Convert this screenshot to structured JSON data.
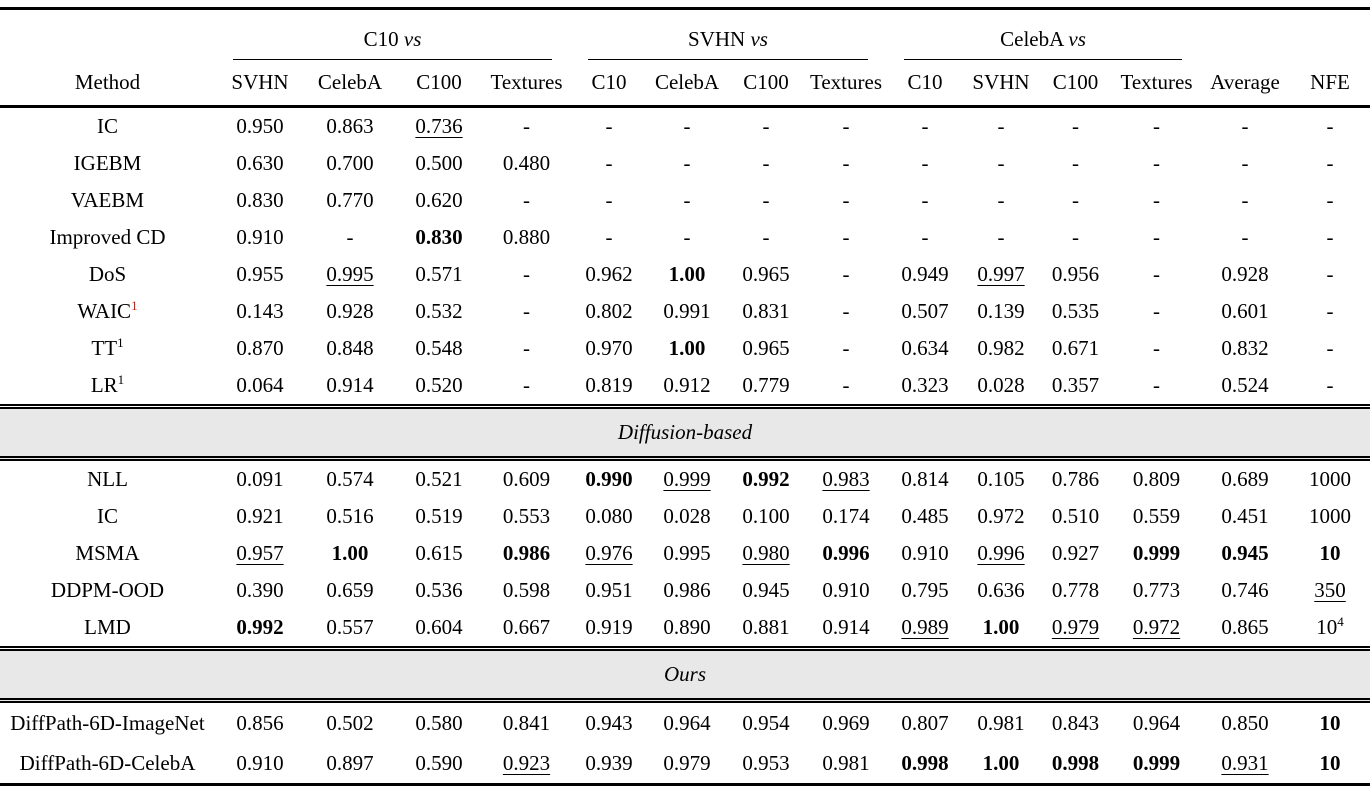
{
  "colors": {
    "band_gray": "#e8e8e8",
    "footnote_red": "#ee1100",
    "text": "#000000",
    "background": "#ffffff"
  },
  "table": {
    "method_header": "Method",
    "tail_headers": [
      "Average",
      "NFE"
    ],
    "groups": [
      {
        "dataset": "C10",
        "vs": "vs",
        "columns": [
          "SVHN",
          "CelebA",
          "C100",
          "Textures"
        ]
      },
      {
        "dataset": "SVHN",
        "vs": "vs",
        "columns": [
          "C10",
          "CelebA",
          "C100",
          "Textures"
        ]
      },
      {
        "dataset": "CelebA",
        "vs": "vs",
        "columns": [
          "C10",
          "SVHN",
          "C100",
          "Textures"
        ]
      }
    ],
    "sections": [
      {
        "band": null,
        "rows": [
          {
            "method": "IC",
            "cells": [
              {
                "v": "0.950"
              },
              {
                "v": "0.863"
              },
              {
                "v": "0.736",
                "u": true
              },
              {
                "v": "-"
              },
              {
                "v": "-"
              },
              {
                "v": "-"
              },
              {
                "v": "-"
              },
              {
                "v": "-"
              },
              {
                "v": "-"
              },
              {
                "v": "-"
              },
              {
                "v": "-"
              },
              {
                "v": "-"
              },
              {
                "v": "-"
              },
              {
                "v": "-"
              }
            ]
          },
          {
            "method": "IGEBM",
            "cells": [
              {
                "v": "0.630"
              },
              {
                "v": "0.700"
              },
              {
                "v": "0.500"
              },
              {
                "v": "0.480"
              },
              {
                "v": "-"
              },
              {
                "v": "-"
              },
              {
                "v": "-"
              },
              {
                "v": "-"
              },
              {
                "v": "-"
              },
              {
                "v": "-"
              },
              {
                "v": "-"
              },
              {
                "v": "-"
              },
              {
                "v": "-"
              },
              {
                "v": "-"
              }
            ]
          },
          {
            "method": "VAEBM",
            "cells": [
              {
                "v": "0.830"
              },
              {
                "v": "0.770"
              },
              {
                "v": "0.620"
              },
              {
                "v": "-"
              },
              {
                "v": "-"
              },
              {
                "v": "-"
              },
              {
                "v": "-"
              },
              {
                "v": "-"
              },
              {
                "v": "-"
              },
              {
                "v": "-"
              },
              {
                "v": "-"
              },
              {
                "v": "-"
              },
              {
                "v": "-"
              },
              {
                "v": "-"
              }
            ]
          },
          {
            "method": "Improved CD",
            "cells": [
              {
                "v": "0.910"
              },
              {
                "v": "-"
              },
              {
                "v": "0.830",
                "b": true
              },
              {
                "v": "0.880"
              },
              {
                "v": "-"
              },
              {
                "v": "-"
              },
              {
                "v": "-"
              },
              {
                "v": "-"
              },
              {
                "v": "-"
              },
              {
                "v": "-"
              },
              {
                "v": "-"
              },
              {
                "v": "-"
              },
              {
                "v": "-"
              },
              {
                "v": "-"
              }
            ]
          },
          {
            "method": "DoS",
            "cells": [
              {
                "v": "0.955"
              },
              {
                "v": "0.995",
                "u": true
              },
              {
                "v": "0.571"
              },
              {
                "v": "-"
              },
              {
                "v": "0.962"
              },
              {
                "v": "1.00",
                "b": true
              },
              {
                "v": "0.965"
              },
              {
                "v": "-"
              },
              {
                "v": "0.949"
              },
              {
                "v": "0.997",
                "u": true
              },
              {
                "v": "0.956"
              },
              {
                "v": "-"
              },
              {
                "v": "0.928"
              },
              {
                "v": "-"
              }
            ]
          },
          {
            "method": "WAIC",
            "sup": "1",
            "supColor": "red",
            "cells": [
              {
                "v": "0.143"
              },
              {
                "v": "0.928"
              },
              {
                "v": "0.532"
              },
              {
                "v": "-"
              },
              {
                "v": "0.802"
              },
              {
                "v": "0.991"
              },
              {
                "v": "0.831"
              },
              {
                "v": "-"
              },
              {
                "v": "0.507"
              },
              {
                "v": "0.139"
              },
              {
                "v": "0.535"
              },
              {
                "v": "-"
              },
              {
                "v": "0.601"
              },
              {
                "v": "-"
              }
            ]
          },
          {
            "method": "TT",
            "sup": "1",
            "cells": [
              {
                "v": "0.870"
              },
              {
                "v": "0.848"
              },
              {
                "v": "0.548"
              },
              {
                "v": "-"
              },
              {
                "v": "0.970"
              },
              {
                "v": "1.00",
                "b": true
              },
              {
                "v": "0.965"
              },
              {
                "v": "-"
              },
              {
                "v": "0.634"
              },
              {
                "v": "0.982"
              },
              {
                "v": "0.671"
              },
              {
                "v": "-"
              },
              {
                "v": "0.832"
              },
              {
                "v": "-"
              }
            ]
          },
          {
            "method": "LR",
            "sup": "1",
            "cells": [
              {
                "v": "0.064"
              },
              {
                "v": "0.914"
              },
              {
                "v": "0.520"
              },
              {
                "v": "-"
              },
              {
                "v": "0.819"
              },
              {
                "v": "0.912"
              },
              {
                "v": "0.779"
              },
              {
                "v": "-"
              },
              {
                "v": "0.323"
              },
              {
                "v": "0.028"
              },
              {
                "v": "0.357"
              },
              {
                "v": "-"
              },
              {
                "v": "0.524"
              },
              {
                "v": "-"
              }
            ]
          }
        ]
      },
      {
        "band": "Diffusion-based",
        "rows": [
          {
            "method": "NLL",
            "cells": [
              {
                "v": "0.091"
              },
              {
                "v": "0.574"
              },
              {
                "v": "0.521"
              },
              {
                "v": "0.609"
              },
              {
                "v": "0.990",
                "b": true
              },
              {
                "v": "0.999",
                "u": true
              },
              {
                "v": "0.992",
                "b": true
              },
              {
                "v": "0.983",
                "u": true
              },
              {
                "v": "0.814"
              },
              {
                "v": "0.105"
              },
              {
                "v": "0.786"
              },
              {
                "v": "0.809"
              },
              {
                "v": "0.689"
              },
              {
                "v": "1000"
              }
            ]
          },
          {
            "method": "IC",
            "cells": [
              {
                "v": "0.921"
              },
              {
                "v": "0.516"
              },
              {
                "v": "0.519"
              },
              {
                "v": "0.553"
              },
              {
                "v": "0.080"
              },
              {
                "v": "0.028"
              },
              {
                "v": "0.100"
              },
              {
                "v": "0.174"
              },
              {
                "v": "0.485"
              },
              {
                "v": "0.972"
              },
              {
                "v": "0.510"
              },
              {
                "v": "0.559"
              },
              {
                "v": "0.451"
              },
              {
                "v": "1000"
              }
            ]
          },
          {
            "method": "MSMA",
            "cells": [
              {
                "v": "0.957",
                "u": true
              },
              {
                "v": "1.00",
                "b": true
              },
              {
                "v": "0.615"
              },
              {
                "v": "0.986",
                "b": true
              },
              {
                "v": "0.976",
                "u": true
              },
              {
                "v": "0.995"
              },
              {
                "v": "0.980",
                "u": true
              },
              {
                "v": "0.996",
                "b": true
              },
              {
                "v": "0.910"
              },
              {
                "v": "0.996",
                "u": true
              },
              {
                "v": "0.927"
              },
              {
                "v": "0.999",
                "b": true
              },
              {
                "v": "0.945",
                "b": true
              },
              {
                "v": "10",
                "b": true
              }
            ]
          },
          {
            "method": "DDPM-OOD",
            "cells": [
              {
                "v": "0.390"
              },
              {
                "v": "0.659"
              },
              {
                "v": "0.536"
              },
              {
                "v": "0.598"
              },
              {
                "v": "0.951"
              },
              {
                "v": "0.986"
              },
              {
                "v": "0.945"
              },
              {
                "v": "0.910"
              },
              {
                "v": "0.795"
              },
              {
                "v": "0.636"
              },
              {
                "v": "0.778"
              },
              {
                "v": "0.773"
              },
              {
                "v": "0.746"
              },
              {
                "v": "350",
                "u": true
              }
            ]
          },
          {
            "method": "LMD",
            "cells": [
              {
                "v": "0.992",
                "b": true
              },
              {
                "v": "0.557"
              },
              {
                "v": "0.604"
              },
              {
                "v": "0.667"
              },
              {
                "v": "0.919"
              },
              {
                "v": "0.890"
              },
              {
                "v": "0.881"
              },
              {
                "v": "0.914"
              },
              {
                "v": "0.989",
                "u": true
              },
              {
                "v": "1.00",
                "b": true
              },
              {
                "v": "0.979",
                "u": true
              },
              {
                "v": "0.972",
                "u": true
              },
              {
                "v": "0.865"
              },
              {
                "v": "10",
                "sup": "4"
              }
            ]
          }
        ]
      },
      {
        "band": "Ours",
        "rows": [
          {
            "method": "DiffPath-6D-ImageNet",
            "cells": [
              {
                "v": "0.856"
              },
              {
                "v": "0.502"
              },
              {
                "v": "0.580"
              },
              {
                "v": "0.841"
              },
              {
                "v": "0.943"
              },
              {
                "v": "0.964"
              },
              {
                "v": "0.954"
              },
              {
                "v": "0.969"
              },
              {
                "v": "0.807"
              },
              {
                "v": "0.981"
              },
              {
                "v": "0.843"
              },
              {
                "v": "0.964"
              },
              {
                "v": "0.850"
              },
              {
                "v": "10",
                "b": true
              }
            ]
          },
          {
            "method": "DiffPath-6D-CelebA",
            "cells": [
              {
                "v": "0.910"
              },
              {
                "v": "0.897"
              },
              {
                "v": "0.590"
              },
              {
                "v": "0.923",
                "u": true
              },
              {
                "v": "0.939"
              },
              {
                "v": "0.979"
              },
              {
                "v": "0.953"
              },
              {
                "v": "0.981"
              },
              {
                "v": "0.998",
                "b": true
              },
              {
                "v": "1.00",
                "b": true
              },
              {
                "v": "0.998",
                "b": true
              },
              {
                "v": "0.999",
                "b": true
              },
              {
                "v": "0.931",
                "u": true
              },
              {
                "v": "10",
                "b": true
              }
            ]
          }
        ]
      }
    ]
  }
}
